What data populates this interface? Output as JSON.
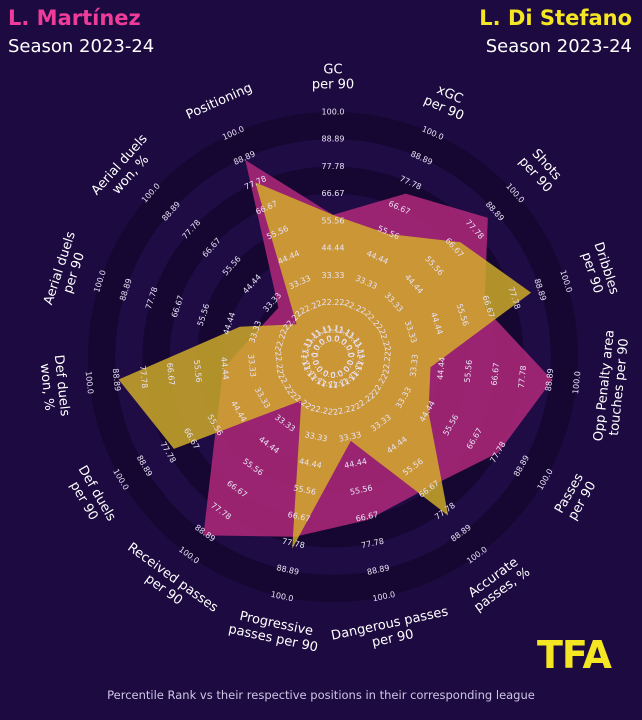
{
  "header": {
    "player1_name": "L. Martínez",
    "player1_season": "Season 2023-24",
    "player2_name": "L. Di Stefano",
    "player2_season": "Season 2023-24"
  },
  "logo": "TFA",
  "footer": "Percentile Rank vs their respective positions in their corresponding league",
  "colors": {
    "background": "#1c0a40",
    "ring_dark": "#150731",
    "ring_light": "#1f0c45",
    "player1": "#b0287a",
    "player2": "#d4b02a",
    "player1_text": "#ef3c9a",
    "player2_text": "#f5e623"
  },
  "chart_data": {
    "type": "radar",
    "title": "",
    "rlim": [
      0,
      100
    ],
    "ring_labels": [
      "0.0",
      "11.11",
      "22.22",
      "33.33",
      "44.44",
      "55.56",
      "66.67",
      "77.78",
      "88.89",
      "100.0"
    ],
    "categories": [
      [
        "GC",
        "per 90"
      ],
      [
        "xGC",
        "per 90"
      ],
      [
        "Shots",
        "per 90"
      ],
      [
        "Dribbles",
        "per 90"
      ],
      [
        "Opp Penalty area",
        "touches per 90"
      ],
      [
        "Passes",
        "per 90"
      ],
      [
        "Accurate",
        "passes, %"
      ],
      [
        "Dangerous passes",
        "per 90"
      ],
      [
        "Progressive",
        "passes per 90"
      ],
      [
        "Received passes",
        "per 90"
      ],
      [
        "Def duels",
        "per 90"
      ],
      [
        "Def duels",
        "won, %"
      ],
      [
        "Aerial duels",
        "per 90"
      ],
      [
        "Aerial duels",
        "won, %"
      ],
      [
        "Positioning"
      ]
    ],
    "series": [
      {
        "name": "L. Martínez",
        "values": [
          58,
          73,
          85,
          65,
          90,
          78,
          66,
          68,
          75,
          90,
          55,
          45,
          33,
          30,
          88
        ]
      },
      {
        "name": "L. Di Stefano",
        "values": [
          58,
          55,
          70,
          85,
          40,
          45,
          80,
          35,
          80,
          22,
          75,
          88,
          40,
          20,
          78
        ]
      }
    ]
  }
}
